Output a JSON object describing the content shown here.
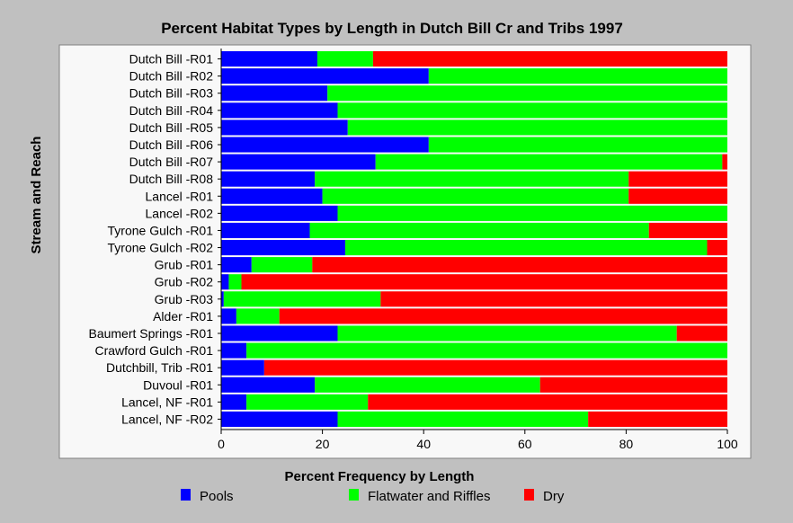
{
  "chart_data": {
    "type": "bar",
    "orientation": "horizontal",
    "stacked": true,
    "title": "Percent Habitat Types by Length in Dutch Bill Cr and Tribs 1997",
    "xlabel": "Percent Frequency by Length",
    "ylabel": "Stream and Reach",
    "xlim": [
      0,
      100
    ],
    "xticks": [
      "0",
      "20",
      "40",
      "60",
      "80",
      "100"
    ],
    "legend_position": "bottom",
    "categories": [
      "Dutch Bill -R01",
      "Dutch Bill -R02",
      "Dutch Bill -R03",
      "Dutch Bill -R04",
      "Dutch Bill -R05",
      "Dutch Bill -R06",
      "Dutch Bill -R07",
      "Dutch Bill -R08",
      "Lancel -R01",
      "Lancel -R02",
      "Tyrone Gulch -R01",
      "Tyrone Gulch -R02",
      "Grub -R01",
      "Grub -R02",
      "Grub -R03",
      "Alder -R01",
      "Baumert Springs -R01",
      "Crawford Gulch -R01",
      "Dutchbill, Trib -R01",
      "Duvoul -R01",
      "Lancel, NF -R01",
      "Lancel, NF -R02"
    ],
    "series": [
      {
        "name": "Pools",
        "color": "#0000ff",
        "values": [
          19,
          41,
          21,
          23,
          25,
          41,
          30.5,
          18.5,
          20,
          23,
          17.5,
          24.5,
          6,
          1.5,
          0.5,
          3,
          23,
          5,
          8.5,
          18.5,
          5,
          23
        ]
      },
      {
        "name": "Flatwater and Riffles",
        "color": "#00ff00",
        "values": [
          11,
          59,
          79,
          77,
          75,
          59,
          68.5,
          62,
          60.5,
          77,
          67,
          71.5,
          12,
          2.5,
          31,
          8.5,
          67,
          95,
          0,
          44.5,
          24,
          49.5
        ]
      },
      {
        "name": "Dry",
        "color": "#ff0000",
        "values": [
          70,
          0,
          0,
          0,
          0,
          0,
          1,
          19.5,
          19.5,
          0,
          15.5,
          4,
          82,
          96,
          68.5,
          88.5,
          10,
          0,
          91.5,
          37,
          71,
          27.5
        ]
      }
    ]
  }
}
